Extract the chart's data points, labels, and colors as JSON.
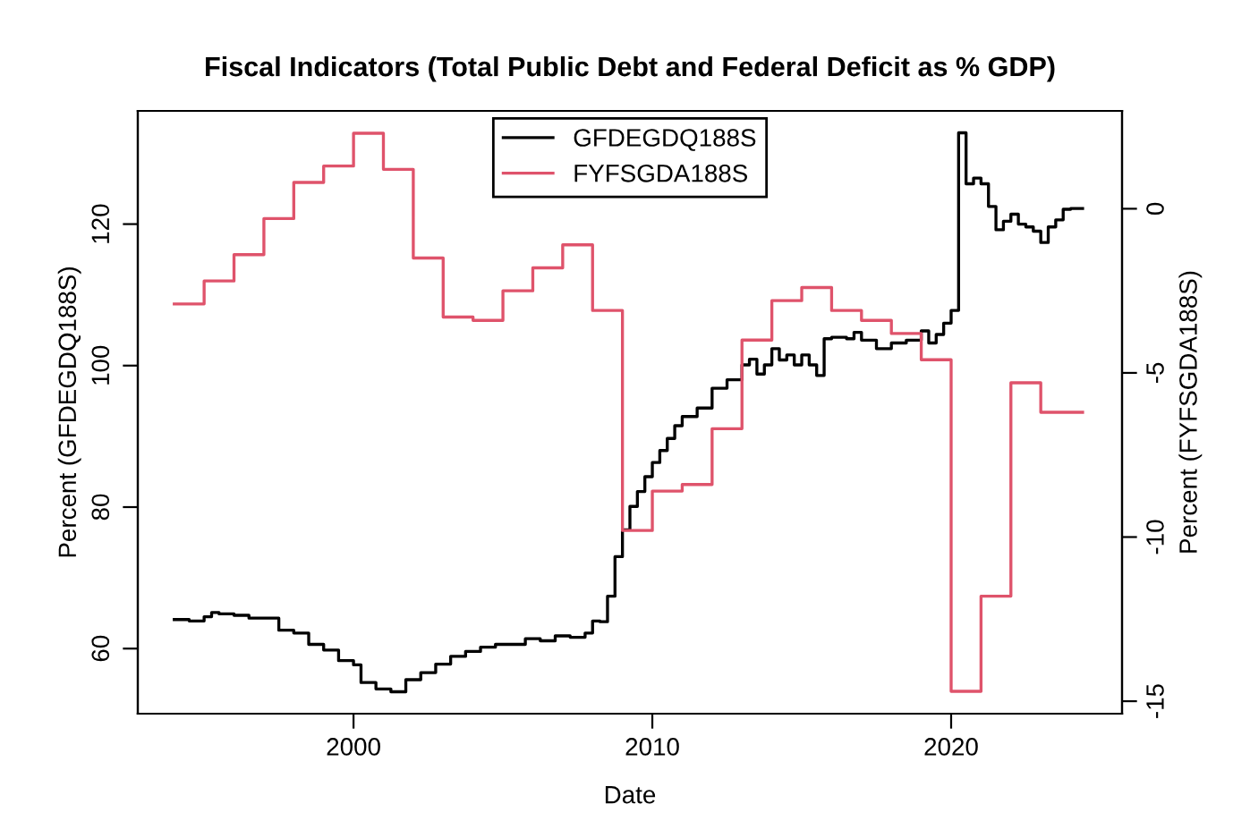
{
  "chart_data": {
    "type": "step",
    "title": "Fiscal Indicators (Total Public Debt and Federal Deficit as % GDP)",
    "xlabel": "Date",
    "ylabel": "Percent (GFDEGDQ188S)",
    "y2label": "Percent (FYFSGDA188S)",
    "xlim": [
      1992.78,
      2025.72
    ],
    "xticks": [
      2000,
      2010,
      2020
    ],
    "ylim": [
      50.8,
      136.0
    ],
    "yticks": [
      60,
      80,
      100,
      120
    ],
    "y2lim": [
      -15.38,
      2.98
    ],
    "y2ticks": [
      -15,
      -10,
      -5,
      0
    ],
    "legend": "top",
    "grid": false,
    "line_style": "solid",
    "series": [
      {
        "name": "GFDEGDQ188S",
        "color": "#000000",
        "x": [
          1994.0,
          1994.5,
          1995.0,
          1995.25,
          1995.5,
          1996.0,
          1996.5,
          1997.0,
          1997.5,
          1998.0,
          1998.5,
          1999.0,
          1999.5,
          2000.0,
          2000.25,
          2000.75,
          2001.25,
          2001.75,
          2002.25,
          2002.75,
          2003.25,
          2003.75,
          2004.25,
          2004.75,
          2005.25,
          2005.75,
          2006.25,
          2006.75,
          2007.25,
          2007.75,
          2008.0,
          2008.25,
          2008.5,
          2008.75,
          2009.0,
          2009.25,
          2009.5,
          2009.75,
          2010.0,
          2010.25,
          2010.5,
          2010.75,
          2011.0,
          2011.5,
          2012.0,
          2012.5,
          2013.0,
          2013.25,
          2013.5,
          2013.75,
          2014.0,
          2014.25,
          2014.5,
          2014.75,
          2015.0,
          2015.25,
          2015.5,
          2015.75,
          2016.0,
          2016.5,
          2016.75,
          2017.0,
          2017.5,
          2018.0,
          2018.5,
          2019.0,
          2019.25,
          2019.5,
          2019.75,
          2020.0,
          2020.25,
          2020.5,
          2020.75,
          2021.0,
          2021.25,
          2021.5,
          2021.75,
          2022.0,
          2022.25,
          2022.5,
          2022.75,
          2023.0,
          2023.25,
          2023.5,
          2023.75,
          2024.0,
          2024.4
        ],
        "values": [
          64.1,
          63.9,
          64.5,
          65.1,
          64.9,
          64.7,
          64.3,
          64.3,
          62.6,
          62.2,
          60.6,
          59.8,
          58.3,
          57.7,
          55.2,
          54.3,
          53.9,
          55.6,
          56.6,
          57.8,
          58.9,
          59.6,
          60.2,
          60.6,
          60.6,
          61.4,
          61.1,
          61.8,
          61.6,
          62.2,
          63.9,
          63.8,
          67.4,
          73.0,
          76.8,
          80.1,
          82.2,
          84.3,
          86.3,
          88.0,
          89.7,
          91.5,
          92.8,
          94.0,
          96.8,
          98.0,
          100.1,
          100.9,
          98.8,
          100.1,
          102.4,
          100.8,
          101.5,
          100.1,
          101.5,
          100.1,
          98.6,
          103.8,
          104.0,
          103.8,
          104.7,
          103.6,
          102.4,
          103.2,
          103.6,
          104.9,
          103.2,
          104.4,
          106.0,
          107.8,
          132.9,
          125.7,
          126.5,
          125.7,
          122.5,
          119.2,
          120.4,
          121.4,
          120.0,
          119.6,
          119.0,
          117.4,
          119.6,
          120.6,
          122.1,
          122.2,
          122.2
        ]
      },
      {
        "name": "FYFSGDA188S",
        "color": "#df536b",
        "axis": "y2",
        "x": [
          1994,
          1995,
          1996,
          1997,
          1998,
          1999,
          2000,
          2001,
          2002,
          2003,
          2004,
          2005,
          2006,
          2007,
          2008,
          2009,
          2010,
          2011,
          2012,
          2013,
          2014,
          2015,
          2016,
          2017,
          2018,
          2019,
          2020,
          2021,
          2022,
          2023,
          2024.4
        ],
        "values": [
          -2.9,
          -2.2,
          -1.4,
          -0.3,
          0.8,
          1.3,
          2.3,
          1.2,
          -1.5,
          -3.3,
          -3.4,
          -2.5,
          -1.8,
          -1.1,
          -3.1,
          -9.8,
          -8.6,
          -8.4,
          -6.7,
          -4.0,
          -2.8,
          -2.4,
          -3.1,
          -3.4,
          -3.8,
          -4.6,
          -14.7,
          -11.8,
          -5.3,
          -6.2,
          -6.2
        ]
      }
    ]
  }
}
